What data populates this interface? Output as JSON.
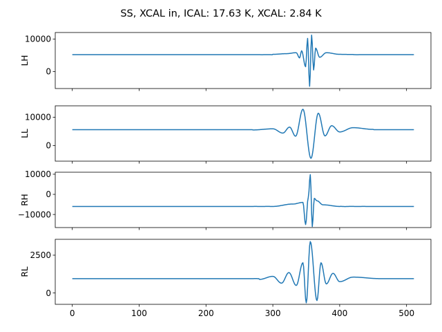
{
  "chart_data": {
    "type": "line",
    "title": "SS, XCAL in, ICAL: 17.63 K, XCAL: 2.84 K",
    "line_color": "#1f77b4",
    "x_range": [
      0,
      511
    ],
    "xlim": [
      -25.5,
      536.5
    ],
    "x_ticks": [
      0,
      100,
      200,
      300,
      400,
      500
    ],
    "shared_x": true,
    "grid": false,
    "subplots": [
      {
        "ylabel": "LH",
        "ylim": [
          -5200,
          12000
        ],
        "y_ticks": [
          0,
          10000
        ],
        "y_tick_labels": [
          "0",
          "10000"
        ],
        "baseline": 5200,
        "peak_index": 356,
        "series": [
          {
            "x": 300,
            "y": 5300
          },
          {
            "x": 320,
            "y": 5500
          },
          {
            "x": 335,
            "y": 5800
          },
          {
            "x": 340,
            "y": 4200
          },
          {
            "x": 343,
            "y": 6400
          },
          {
            "x": 349,
            "y": 1500
          },
          {
            "x": 352,
            "y": 10200
          },
          {
            "x": 355,
            "y": -4500
          },
          {
            "x": 358,
            "y": 11200
          },
          {
            "x": 361,
            "y": 500
          },
          {
            "x": 364,
            "y": 7200
          },
          {
            "x": 370,
            "y": 4400
          },
          {
            "x": 380,
            "y": 5800
          },
          {
            "x": 400,
            "y": 5300
          },
          {
            "x": 420,
            "y": 5250
          }
        ]
      },
      {
        "ylabel": "LL",
        "ylim": [
          -5500,
          14000
        ],
        "y_ticks": [
          0,
          10000
        ],
        "y_tick_labels": [
          "0",
          "10000"
        ],
        "baseline": 5600,
        "peak_index": 351,
        "series": [
          {
            "x": 270,
            "y": 5500
          },
          {
            "x": 300,
            "y": 5900
          },
          {
            "x": 315,
            "y": 4400
          },
          {
            "x": 325,
            "y": 6500
          },
          {
            "x": 334,
            "y": 3300
          },
          {
            "x": 345,
            "y": 12800
          },
          {
            "x": 357,
            "y": -4500
          },
          {
            "x": 368,
            "y": 11400
          },
          {
            "x": 378,
            "y": 3400
          },
          {
            "x": 388,
            "y": 7000
          },
          {
            "x": 400,
            "y": 4800
          },
          {
            "x": 420,
            "y": 6300
          },
          {
            "x": 450,
            "y": 5700
          }
        ]
      },
      {
        "ylabel": "RH",
        "ylim": [
          -16500,
          11000
        ],
        "y_ticks": [
          -10000,
          0,
          10000
        ],
        "y_tick_labels": [
          "−10000",
          "0",
          "10000"
        ],
        "baseline": -6000,
        "peak_index": 356,
        "series": [
          {
            "x": 300,
            "y": -6000
          },
          {
            "x": 330,
            "y": -4800
          },
          {
            "x": 345,
            "y": -4000
          },
          {
            "x": 349,
            "y": -15000
          },
          {
            "x": 353,
            "y": -1500
          },
          {
            "x": 356,
            "y": 9800
          },
          {
            "x": 359,
            "y": -16000
          },
          {
            "x": 362,
            "y": -2000
          },
          {
            "x": 366,
            "y": -3200
          },
          {
            "x": 375,
            "y": -5200
          },
          {
            "x": 400,
            "y": -6000
          }
        ]
      },
      {
        "ylabel": "RL",
        "ylim": [
          -750,
          3550
        ],
        "y_ticks": [
          0,
          2500
        ],
        "y_tick_labels": [
          "0",
          "2500"
        ],
        "baseline": 950,
        "peak_index": 356,
        "series": [
          {
            "x": 280,
            "y": 900
          },
          {
            "x": 300,
            "y": 1100
          },
          {
            "x": 313,
            "y": 650
          },
          {
            "x": 324,
            "y": 1350
          },
          {
            "x": 335,
            "y": 500
          },
          {
            "x": 345,
            "y": 2000
          },
          {
            "x": 350,
            "y": -650
          },
          {
            "x": 356,
            "y": 3400
          },
          {
            "x": 366,
            "y": -500
          },
          {
            "x": 372,
            "y": 2000
          },
          {
            "x": 380,
            "y": 600
          },
          {
            "x": 390,
            "y": 1300
          },
          {
            "x": 400,
            "y": 750
          },
          {
            "x": 420,
            "y": 1050
          },
          {
            "x": 460,
            "y": 950
          }
        ]
      }
    ]
  }
}
